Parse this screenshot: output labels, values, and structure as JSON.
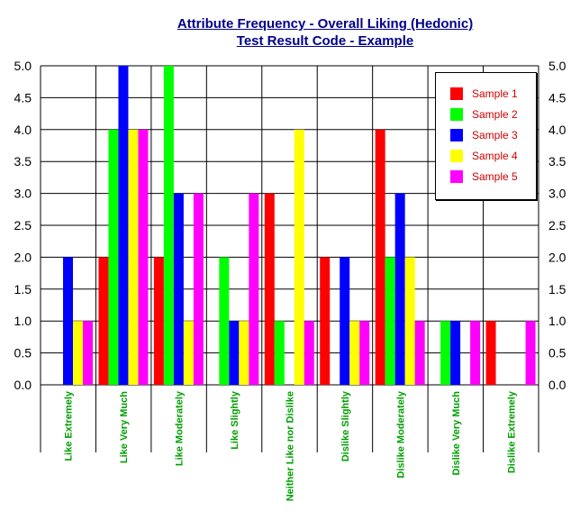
{
  "chart_data": {
    "type": "bar",
    "title": "Attribute Frequency - Overall Liking  (Hedonic)",
    "subtitle": "Test Result Code - Example",
    "categories": [
      "Like Extremely",
      "Like Very Much",
      "Like Moderately",
      "Like Slightly",
      "Neither Like nor Dislike",
      "Dislike Slightly",
      "Dislike Moderately",
      "Dislike Very Much",
      "Dislike Extremely"
    ],
    "series": [
      {
        "name": "Sample 1",
        "color": "#ff0000",
        "values": [
          0,
          2,
          2,
          0,
          3,
          2,
          4,
          0,
          1
        ]
      },
      {
        "name": "Sample 2",
        "color": "#00ff00",
        "values": [
          0,
          4,
          5,
          2,
          1,
          0,
          2,
          1,
          0
        ]
      },
      {
        "name": "Sample 3",
        "color": "#0000ff",
        "values": [
          2,
          5,
          3,
          1,
          0,
          2,
          3,
          1,
          0
        ]
      },
      {
        "name": "Sample 4",
        "color": "#ffff00",
        "values": [
          1,
          4,
          1,
          1,
          4,
          1,
          2,
          0,
          0
        ]
      },
      {
        "name": "Sample 5",
        "color": "#ff00ff",
        "values": [
          1,
          4,
          3,
          3,
          1,
          1,
          1,
          1,
          1
        ]
      }
    ],
    "ylim": [
      0,
      5
    ],
    "yticks": [
      "0.0",
      "0.5",
      "1.0",
      "1.5",
      "2.0",
      "2.5",
      "3.0",
      "3.5",
      "4.0",
      "4.5",
      "5.0"
    ],
    "xlabel": "",
    "ylabel": "",
    "grid": true,
    "legend_position": "top-right",
    "category_label_color": "#00a000"
  }
}
